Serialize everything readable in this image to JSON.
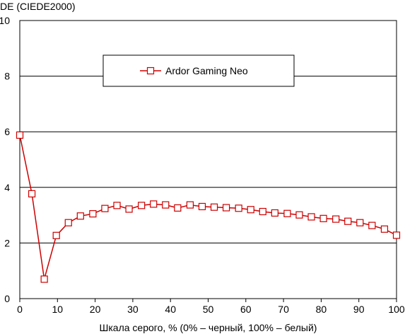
{
  "chart_data": {
    "type": "line",
    "ylabel": "DE (CIEDE2000)",
    "xlabel": "Шкала серого, % (0% – черный, 100% – белый)",
    "xlim": [
      0,
      100
    ],
    "ylim": [
      0,
      10
    ],
    "x_ticks": [
      "0",
      "10",
      "20",
      "30",
      "40",
      "50",
      "60",
      "70",
      "80",
      "90",
      "100"
    ],
    "y_ticks": [
      "0",
      "2",
      "4",
      "6",
      "8",
      "10"
    ],
    "grid": "horizontal",
    "legend_position": "top-center",
    "colors": {
      "series": "#cc0000",
      "marker_fill": "#ffffff",
      "grid": "#000000"
    },
    "series": [
      {
        "name": "Ardor Gaming Neo",
        "x": [
          0,
          3.2,
          6.5,
          9.7,
          12.9,
          16.1,
          19.4,
          22.6,
          25.8,
          29.0,
          32.3,
          35.5,
          38.7,
          41.9,
          45.2,
          48.4,
          51.6,
          54.8,
          58.1,
          61.3,
          64.5,
          67.7,
          71.0,
          74.2,
          77.4,
          80.6,
          83.9,
          87.1,
          90.3,
          93.5,
          96.8,
          100
        ],
        "y": [
          5.88,
          3.77,
          0.7,
          2.27,
          2.73,
          2.97,
          3.05,
          3.24,
          3.35,
          3.22,
          3.35,
          3.4,
          3.37,
          3.26,
          3.37,
          3.31,
          3.29,
          3.27,
          3.25,
          3.2,
          3.13,
          3.08,
          3.06,
          3.01,
          2.94,
          2.88,
          2.86,
          2.78,
          2.73,
          2.63,
          2.5,
          2.28
        ]
      }
    ]
  }
}
